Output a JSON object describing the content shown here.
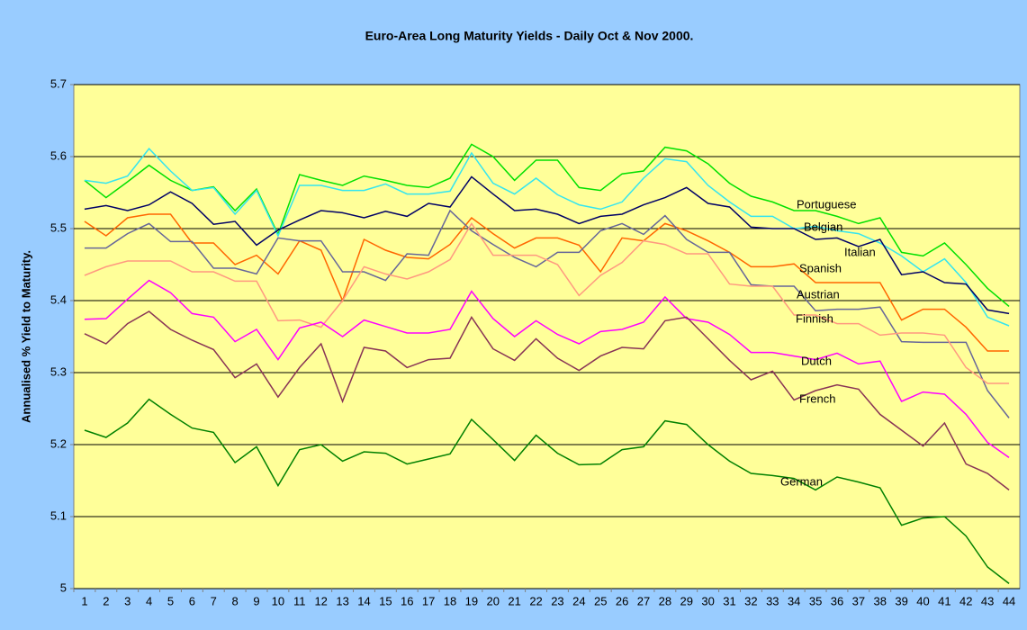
{
  "chart_data": {
    "type": "line",
    "title": "Euro-Area Long Maturity Yields - Daily Oct & Nov 2000.",
    "y_label": "Annualised % Yield to Maturity.",
    "categories": [
      1,
      2,
      3,
      4,
      5,
      6,
      7,
      8,
      9,
      10,
      11,
      12,
      13,
      14,
      15,
      16,
      17,
      18,
      19,
      20,
      21,
      22,
      23,
      24,
      25,
      26,
      27,
      28,
      29,
      30,
      31,
      32,
      33,
      34,
      35,
      36,
      37,
      38,
      39,
      40,
      41,
      42,
      43,
      44
    ],
    "ylim": [
      5,
      5.7
    ],
    "yticks": [
      5,
      5.1,
      5.2,
      5.3,
      5.4,
      5.5,
      5.6,
      5.7
    ],
    "grid": true,
    "series": [
      {
        "name": "Portuguese",
        "color": "#00e000",
        "values": [
          5.567,
          5.543,
          5.565,
          5.588,
          5.567,
          5.553,
          5.558,
          5.525,
          5.555,
          5.492,
          5.575,
          5.567,
          5.56,
          5.573,
          5.567,
          5.56,
          5.557,
          5.57,
          5.617,
          5.6,
          5.567,
          5.595,
          5.595,
          5.557,
          5.553,
          5.576,
          5.58,
          5.613,
          5.608,
          5.59,
          5.563,
          5.545,
          5.537,
          5.525,
          5.525,
          5.517,
          5.507,
          5.515,
          5.467,
          5.462,
          5.48,
          5.45,
          5.417,
          5.392
        ]
      },
      {
        "name": "Belgian",
        "color": "#33e5f0",
        "values": [
          5.567,
          5.563,
          5.573,
          5.611,
          5.58,
          5.553,
          5.557,
          5.52,
          5.553,
          5.49,
          5.56,
          5.56,
          5.553,
          5.553,
          5.562,
          5.548,
          5.548,
          5.552,
          5.605,
          5.563,
          5.548,
          5.57,
          5.547,
          5.533,
          5.527,
          5.537,
          5.57,
          5.597,
          5.593,
          5.56,
          5.537,
          5.517,
          5.517,
          5.5,
          5.503,
          5.497,
          5.493,
          5.48,
          5.462,
          5.44,
          5.458,
          5.425,
          5.377,
          5.365
        ]
      },
      {
        "name": "Italian",
        "color": "#000066",
        "values": [
          5.527,
          5.532,
          5.525,
          5.533,
          5.551,
          5.535,
          5.506,
          5.51,
          5.477,
          5.498,
          5.512,
          5.525,
          5.522,
          5.515,
          5.524,
          5.517,
          5.535,
          5.53,
          5.572,
          5.548,
          5.525,
          5.527,
          5.52,
          5.507,
          5.517,
          5.52,
          5.533,
          5.543,
          5.557,
          5.535,
          5.53,
          5.502,
          5.5,
          5.5,
          5.485,
          5.487,
          5.475,
          5.485,
          5.436,
          5.44,
          5.425,
          5.423,
          5.387,
          5.382
        ]
      },
      {
        "name": "Spanish",
        "color": "#ff6600",
        "values": [
          5.51,
          5.49,
          5.515,
          5.52,
          5.52,
          5.48,
          5.48,
          5.45,
          5.463,
          5.437,
          5.483,
          5.47,
          5.4,
          5.485,
          5.47,
          5.46,
          5.458,
          5.478,
          5.515,
          5.493,
          5.473,
          5.487,
          5.487,
          5.477,
          5.44,
          5.487,
          5.483,
          5.507,
          5.497,
          5.483,
          5.467,
          5.447,
          5.447,
          5.451,
          5.425,
          5.425,
          5.425,
          5.425,
          5.373,
          5.388,
          5.388,
          5.363,
          5.33,
          5.33
        ]
      },
      {
        "name": "Austrian",
        "color": "#666699",
        "values": [
          5.473,
          5.473,
          5.493,
          5.507,
          5.482,
          5.482,
          5.445,
          5.445,
          5.437,
          5.487,
          5.483,
          5.483,
          5.44,
          5.44,
          5.428,
          5.465,
          5.463,
          5.525,
          5.497,
          5.478,
          5.46,
          5.447,
          5.467,
          5.467,
          5.497,
          5.507,
          5.492,
          5.518,
          5.485,
          5.467,
          5.467,
          5.422,
          5.42,
          5.42,
          5.386,
          5.388,
          5.388,
          5.391,
          5.343,
          5.342,
          5.342,
          5.342,
          5.275,
          5.237
        ]
      },
      {
        "name": "Finnish",
        "color": "#ff9980",
        "values": [
          5.435,
          5.447,
          5.455,
          5.455,
          5.455,
          5.44,
          5.44,
          5.427,
          5.427,
          5.372,
          5.373,
          5.363,
          5.4,
          5.447,
          5.437,
          5.43,
          5.44,
          5.457,
          5.507,
          5.463,
          5.463,
          5.463,
          5.45,
          5.407,
          5.435,
          5.453,
          5.483,
          5.478,
          5.465,
          5.465,
          5.423,
          5.42,
          5.42,
          5.38,
          5.38,
          5.368,
          5.368,
          5.352,
          5.355,
          5.355,
          5.352,
          5.307,
          5.285,
          5.285
        ]
      },
      {
        "name": "Dutch",
        "color": "#ff00ff",
        "values": [
          5.374,
          5.375,
          5.402,
          5.428,
          5.411,
          5.382,
          5.377,
          5.343,
          5.36,
          5.318,
          5.362,
          5.37,
          5.35,
          5.373,
          5.364,
          5.355,
          5.355,
          5.36,
          5.413,
          5.375,
          5.35,
          5.372,
          5.353,
          5.34,
          5.357,
          5.36,
          5.37,
          5.405,
          5.375,
          5.37,
          5.353,
          5.328,
          5.328,
          5.323,
          5.318,
          5.327,
          5.312,
          5.316,
          5.26,
          5.273,
          5.27,
          5.242,
          5.203,
          5.182
        ]
      },
      {
        "name": "French",
        "color": "#883355",
        "values": [
          5.354,
          5.34,
          5.368,
          5.385,
          5.36,
          5.345,
          5.332,
          5.293,
          5.312,
          5.266,
          5.307,
          5.34,
          5.26,
          5.335,
          5.33,
          5.307,
          5.318,
          5.32,
          5.377,
          5.333,
          5.317,
          5.347,
          5.32,
          5.303,
          5.323,
          5.335,
          5.333,
          5.372,
          5.377,
          5.347,
          5.317,
          5.29,
          5.302,
          5.262,
          5.275,
          5.283,
          5.277,
          5.242,
          5.22,
          5.198,
          5.23,
          5.173,
          5.16,
          5.137
        ]
      },
      {
        "name": "German",
        "color": "#008000",
        "values": [
          5.22,
          5.21,
          5.23,
          5.263,
          5.242,
          5.223,
          5.217,
          5.175,
          5.197,
          5.143,
          5.193,
          5.2,
          5.177,
          5.19,
          5.188,
          5.173,
          5.18,
          5.187,
          5.235,
          5.207,
          5.178,
          5.213,
          5.188,
          5.172,
          5.173,
          5.193,
          5.197,
          5.233,
          5.228,
          5.2,
          5.177,
          5.16,
          5.157,
          5.153,
          5.137,
          5.155,
          5.148,
          5.14,
          5.088,
          5.098,
          5.1,
          5.073,
          5.03,
          5.007
        ]
      }
    ]
  }
}
